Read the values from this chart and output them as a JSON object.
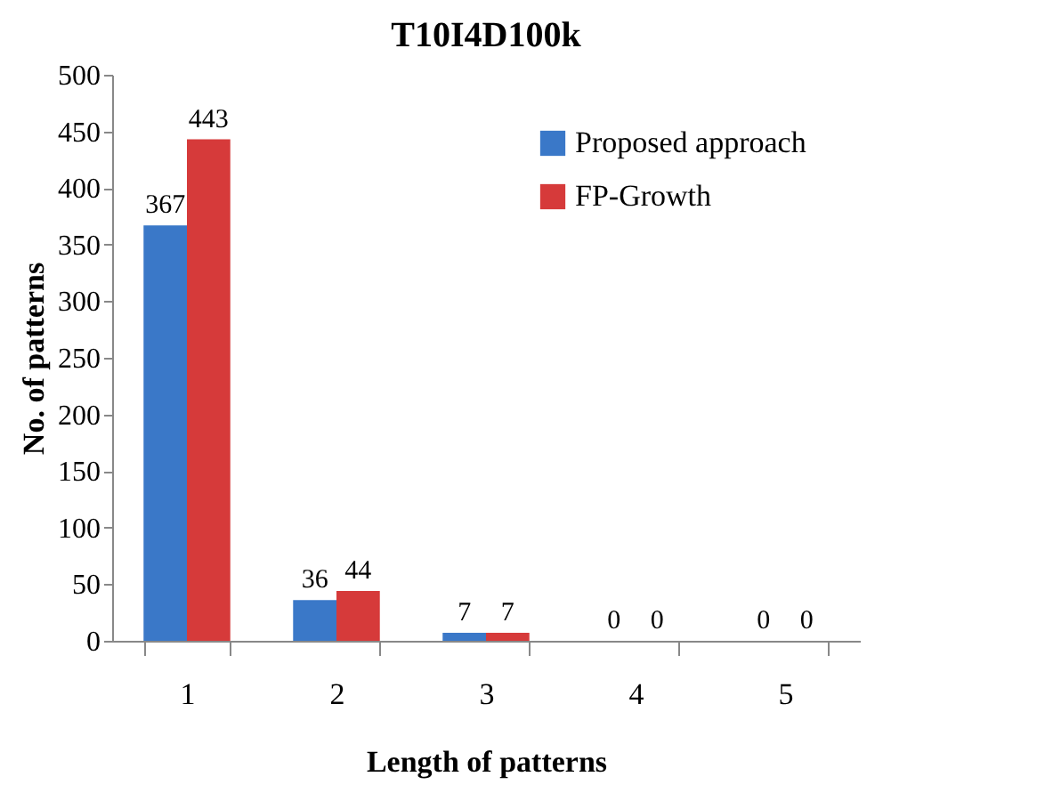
{
  "chart_data": {
    "type": "bar",
    "title": "T10I4D100k",
    "xlabel": "Length of patterns",
    "ylabel": "No. of patterns",
    "categories": [
      "1",
      "2",
      "3",
      "4",
      "5"
    ],
    "series": [
      {
        "name": "Proposed approach",
        "color": "#3a78c8",
        "values": [
          367,
          36,
          7,
          0,
          0
        ]
      },
      {
        "name": "FP-Growth",
        "color": "#d63a3a",
        "values": [
          443,
          44,
          7,
          0,
          0
        ]
      }
    ],
    "ylim": [
      0,
      500
    ],
    "yticks": [
      0,
      50,
      100,
      150,
      200,
      250,
      300,
      350,
      400,
      450,
      500
    ],
    "grid": false,
    "legend": "top right",
    "data_labels": true
  }
}
